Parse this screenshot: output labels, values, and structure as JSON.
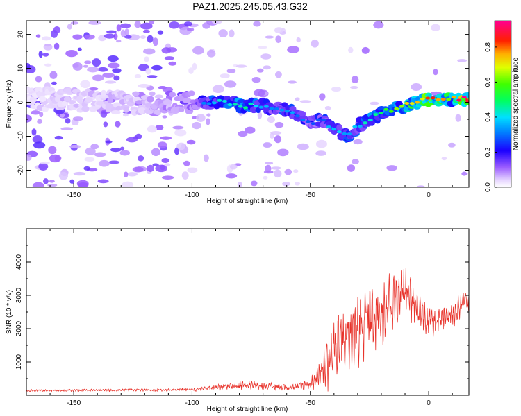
{
  "title": "PAZ1.2025.245.05.43.G32",
  "chart_data": [
    {
      "type": "heatmap",
      "xlabel": "Height of straight line (km)",
      "ylabel": "Frequency (Hz)",
      "xlim": [
        -170,
        17
      ],
      "ylim": [
        -25,
        24
      ],
      "x_ticks": [
        -150,
        -100,
        -50,
        0
      ],
      "y_ticks": [
        -20,
        -10,
        0,
        10,
        20
      ],
      "colorbar": {
        "label": "Normalized spectral amplitude",
        "ticks": [
          0.0,
          0.2,
          0.4,
          0.6,
          0.8
        ],
        "range": [
          0,
          0.95
        ],
        "colormap": "rainbow (white-violet-blue-cyan-green-yellow-red-magenta)"
      },
      "ridge": [
        {
          "x": -170,
          "y": 1,
          "a": 0.05
        },
        {
          "x": -155,
          "y": 1,
          "a": 0.07
        },
        {
          "x": -140,
          "y": 0,
          "a": 0.07
        },
        {
          "x": -125,
          "y": 0,
          "a": 0.08
        },
        {
          "x": -110,
          "y": 0,
          "a": 0.12
        },
        {
          "x": -100,
          "y": 0,
          "a": 0.18
        },
        {
          "x": -95,
          "y": 0,
          "a": 0.25
        },
        {
          "x": -90,
          "y": 0,
          "a": 0.35
        },
        {
          "x": -85,
          "y": 0,
          "a": 0.38
        },
        {
          "x": -80,
          "y": -1,
          "a": 0.38
        },
        {
          "x": -75,
          "y": -1,
          "a": 0.36
        },
        {
          "x": -70,
          "y": -1,
          "a": 0.3
        },
        {
          "x": -65,
          "y": -2,
          "a": 0.28
        },
        {
          "x": -60,
          "y": -2,
          "a": 0.3
        },
        {
          "x": -55,
          "y": -4,
          "a": 0.25
        },
        {
          "x": -50,
          "y": -6,
          "a": 0.22
        },
        {
          "x": -45,
          "y": -5,
          "a": 0.26
        },
        {
          "x": -40,
          "y": -8,
          "a": 0.32
        },
        {
          "x": -35,
          "y": -10,
          "a": 0.3
        },
        {
          "x": -30,
          "y": -7,
          "a": 0.3
        },
        {
          "x": -25,
          "y": -5,
          "a": 0.38
        },
        {
          "x": -20,
          "y": -3,
          "a": 0.42
        },
        {
          "x": -15,
          "y": -2,
          "a": 0.5
        },
        {
          "x": -10,
          "y": -1,
          "a": 0.55
        },
        {
          "x": -5,
          "y": 0,
          "a": 0.62
        },
        {
          "x": 0,
          "y": 1,
          "a": 0.7
        },
        {
          "x": 5,
          "y": 1,
          "a": 0.62
        },
        {
          "x": 10,
          "y": 1,
          "a": 0.55
        },
        {
          "x": 15,
          "y": 1,
          "a": 0.95
        }
      ]
    },
    {
      "type": "line",
      "xlabel": "Height of straight line (km)",
      "ylabel": "SNR (10 * v/v)",
      "xlim": [
        -170,
        17
      ],
      "ylim": [
        0,
        5000
      ],
      "x_ticks": [
        -150,
        -100,
        -50,
        0
      ],
      "y_ticks": [
        1000,
        2000,
        3000,
        4000
      ],
      "color": "#e8332b",
      "envelope": [
        {
          "x": -170,
          "base": 120,
          "amp": 80
        },
        {
          "x": -150,
          "base": 130,
          "amp": 90
        },
        {
          "x": -120,
          "base": 140,
          "amp": 90
        },
        {
          "x": -100,
          "base": 150,
          "amp": 120
        },
        {
          "x": -85,
          "base": 200,
          "amp": 250
        },
        {
          "x": -75,
          "base": 250,
          "amp": 350
        },
        {
          "x": -65,
          "base": 200,
          "amp": 250
        },
        {
          "x": -55,
          "base": 200,
          "amp": 250
        },
        {
          "x": -50,
          "base": 250,
          "amp": 400
        },
        {
          "x": -45,
          "base": 500,
          "amp": 1300
        },
        {
          "x": -40,
          "base": 900,
          "amp": 2200
        },
        {
          "x": -35,
          "base": 1200,
          "amp": 2500
        },
        {
          "x": -30,
          "base": 1400,
          "amp": 2600
        },
        {
          "x": -25,
          "base": 1800,
          "amp": 2600
        },
        {
          "x": -20,
          "base": 2000,
          "amp": 2800
        },
        {
          "x": -15,
          "base": 2400,
          "amp": 2200
        },
        {
          "x": -10,
          "base": 2700,
          "amp": 2100
        },
        {
          "x": -5,
          "base": 2400,
          "amp": 1200
        },
        {
          "x": 0,
          "base": 2000,
          "amp": 1200
        },
        {
          "x": 5,
          "base": 2100,
          "amp": 1000
        },
        {
          "x": 10,
          "base": 2200,
          "amp": 1100
        },
        {
          "x": 15,
          "base": 2600,
          "amp": 900
        }
      ]
    }
  ]
}
